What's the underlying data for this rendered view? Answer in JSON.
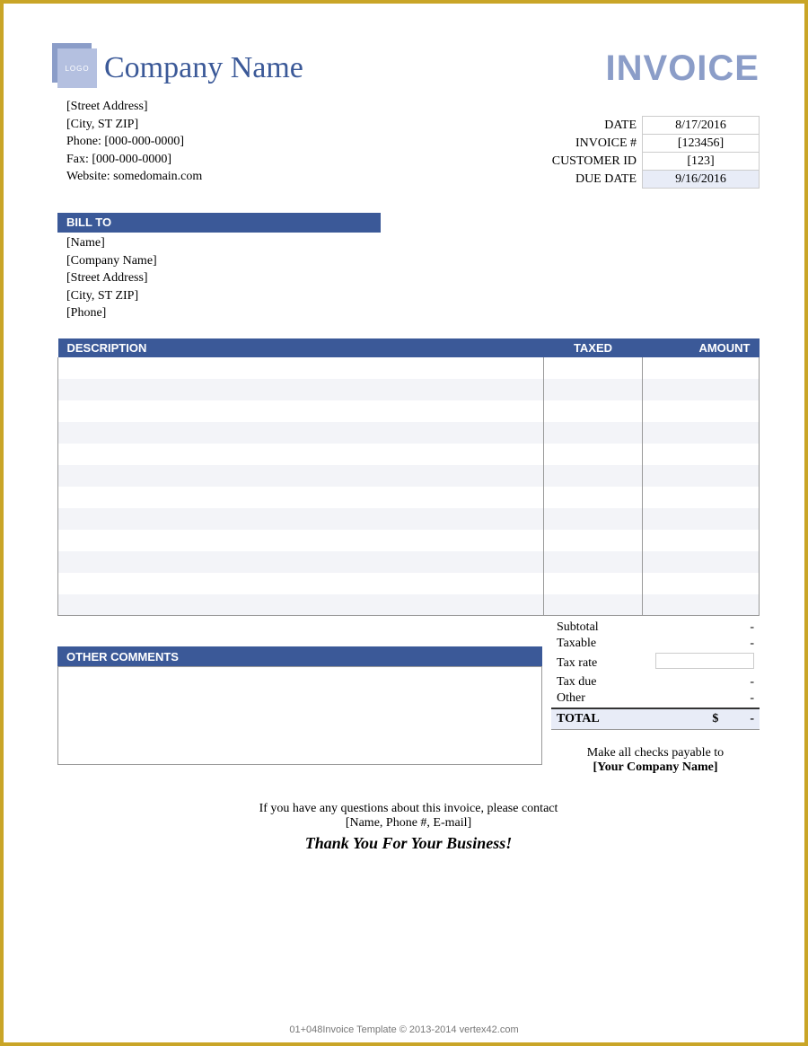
{
  "colors": {
    "border": "#c9a527",
    "accent": "#3b5998",
    "accent_light": "#8b9dc8",
    "row_stripe": "#f3f4f8",
    "highlight": "#e8ecf7"
  },
  "header": {
    "logo_text": "LOGO",
    "company_name": "Company Name",
    "invoice_title": "INVOICE"
  },
  "company_info": {
    "street": "[Street Address]",
    "city_st_zip": "[City, ST  ZIP]",
    "phone": "Phone: [000-000-0000]",
    "fax": "Fax: [000-000-0000]",
    "website": "Website: somedomain.com"
  },
  "meta": {
    "labels": {
      "date": "DATE",
      "invoice_no": "INVOICE #",
      "customer_id": "CUSTOMER ID",
      "due_date": "DUE DATE"
    },
    "values": {
      "date": "8/17/2016",
      "invoice_no": "[123456]",
      "customer_id": "[123]",
      "due_date": "9/16/2016"
    }
  },
  "bill_to": {
    "title": "BILL TO",
    "name": "[Name]",
    "company": "[Company Name]",
    "street": "[Street Address]",
    "city_st_zip": "[City, ST  ZIP]",
    "phone": "[Phone]"
  },
  "line_items": {
    "headers": {
      "description": "DESCRIPTION",
      "taxed": "TAXED",
      "amount": "AMOUNT"
    },
    "row_count": 12
  },
  "totals": {
    "subtotal_label": "Subtotal",
    "subtotal_value": "-",
    "taxable_label": "Taxable",
    "taxable_value": "-",
    "tax_rate_label": "Tax rate",
    "tax_rate_value": "",
    "tax_due_label": "Tax due",
    "tax_due_value": "-",
    "other_label": "Other",
    "other_value": "-",
    "total_label": "TOTAL",
    "total_currency": "$",
    "total_value": "-"
  },
  "comments": {
    "title": "OTHER COMMENTS"
  },
  "payable": {
    "line1": "Make all checks payable to",
    "name": "[Your Company Name]"
  },
  "footer": {
    "contact_line1": "If you have any questions about this invoice, please contact",
    "contact_line2": "[Name, Phone #, E-mail]",
    "thanks": "Thank You For Your Business!"
  },
  "copyright": "01+048Invoice Template © 2013-2014 vertex42.com"
}
